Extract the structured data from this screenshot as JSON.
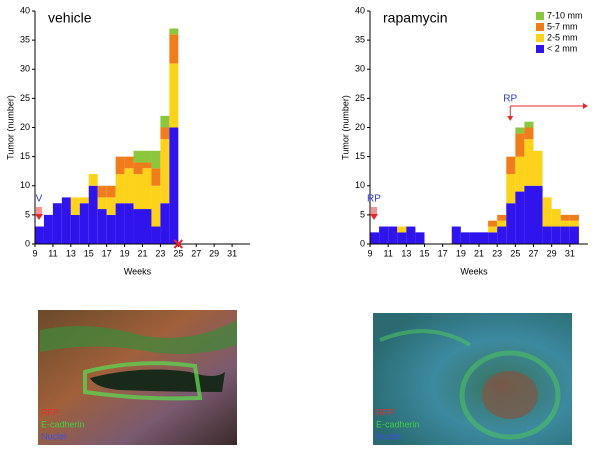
{
  "chart_data": [
    {
      "type": "stacked_bar",
      "title": "vehicle",
      "xlabel": "Weeks",
      "ylabel": "Tumor (number)",
      "x": [
        9,
        10,
        11,
        12,
        13,
        14,
        15,
        16,
        17,
        18,
        19,
        20,
        21,
        22,
        23,
        24
      ],
      "series": [
        {
          "name": "< 2 mm",
          "color": "#2f14ee",
          "values": [
            3,
            5,
            7,
            8,
            5,
            7,
            10,
            6,
            5,
            7,
            7,
            6,
            6,
            3,
            7,
            20
          ]
        },
        {
          "name": "2-5 mm",
          "color": "#fdd21b",
          "values": [
            0,
            0,
            0,
            0,
            3,
            1,
            2,
            2,
            3,
            5,
            6,
            6,
            7,
            7,
            11,
            11
          ]
        },
        {
          "name": "5-7 mm",
          "color": "#f07d1b",
          "values": [
            0,
            0,
            0,
            0,
            0,
            0,
            0,
            2,
            2,
            3,
            2,
            2,
            1,
            3,
            2,
            5
          ]
        },
        {
          "name": "7-10 mm",
          "color": "#8cc63f",
          "values": [
            0,
            0,
            0,
            0,
            0,
            0,
            0,
            0,
            0,
            0,
            0,
            2,
            2,
            3,
            2,
            1
          ]
        }
      ],
      "xlim": [
        9,
        33
      ],
      "xticks": [
        9,
        11,
        13,
        15,
        17,
        19,
        21,
        23,
        25,
        27,
        29,
        31
      ],
      "ylim": [
        0,
        40
      ],
      "yticks": [
        0,
        5,
        10,
        15,
        20,
        25,
        30,
        35,
        40
      ],
      "annotations": [
        "V"
      ],
      "legend": false
    },
    {
      "type": "stacked_bar",
      "title": "rapamycin",
      "xlabel": "Weeks",
      "ylabel": "Tumor (number)",
      "x": [
        9,
        10,
        11,
        12,
        13,
        14,
        15,
        16,
        17,
        18,
        19,
        20,
        21,
        22,
        23,
        24,
        25,
        26,
        27,
        28,
        29,
        30,
        31
      ],
      "series": [
        {
          "name": "< 2 mm",
          "color": "#2f14ee",
          "values": [
            2,
            3,
            3,
            2,
            3,
            2,
            0,
            0,
            0,
            3,
            2,
            2,
            2,
            2,
            3,
            7,
            9,
            10,
            10,
            3,
            3,
            3,
            3
          ]
        },
        {
          "name": "2-5 mm",
          "color": "#fdd21b",
          "values": [
            0,
            0,
            0,
            1,
            0,
            0,
            0,
            0,
            0,
            0,
            0,
            0,
            0,
            1,
            1,
            5,
            6,
            8,
            6,
            5,
            3,
            1,
            1
          ]
        },
        {
          "name": "5-7 mm",
          "color": "#f07d1b",
          "values": [
            0,
            0,
            0,
            0,
            0,
            0,
            0,
            0,
            0,
            0,
            0,
            0,
            0,
            1,
            1,
            3,
            4,
            2,
            0,
            0,
            0,
            1,
            1
          ]
        },
        {
          "name": "7-10 mm",
          "color": "#8cc63f",
          "values": [
            0,
            0,
            0,
            0,
            0,
            0,
            0,
            0,
            0,
            0,
            0,
            0,
            0,
            0,
            0,
            0,
            1,
            1,
            0,
            0,
            0,
            0,
            0
          ]
        }
      ],
      "xlim": [
        9,
        33
      ],
      "xticks": [
        9,
        11,
        13,
        15,
        17,
        19,
        21,
        23,
        25,
        27,
        29,
        31
      ],
      "ylim": [
        0,
        40
      ],
      "yticks": [
        0,
        5,
        10,
        15,
        20,
        25,
        30,
        35,
        40
      ],
      "annotations": [
        "RP",
        "RP"
      ],
      "legend": "upper right"
    }
  ],
  "images": [
    {
      "labels": [
        "RFP",
        "E-cadherin",
        "Nuclei"
      ]
    },
    {
      "labels": [
        "RFP",
        "E-cadherin",
        "Nuclei"
      ]
    }
  ]
}
